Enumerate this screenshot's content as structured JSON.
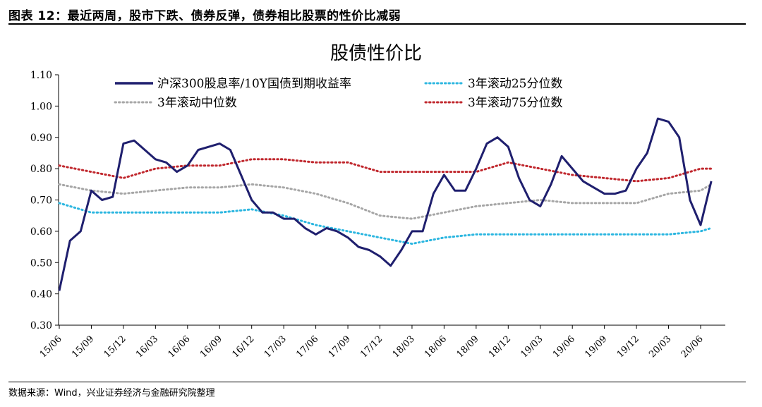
{
  "figure": {
    "title": "图表 12：最近两周，股市下跌、债券反弹，债券相比股票的性价比减弱",
    "source": "数据来源：Wind，兴业证券经济与金融研究院整理"
  },
  "chart_data": {
    "type": "line",
    "title": "股债性价比",
    "xlabel": "",
    "ylabel": "",
    "ylim": [
      0.3,
      1.1
    ],
    "yticks": [
      "0.30",
      "0.40",
      "0.50",
      "0.60",
      "0.70",
      "0.80",
      "0.90",
      "1.00",
      "1.10"
    ],
    "xticks": [
      "15/06",
      "15/09",
      "15/12",
      "16/03",
      "16/06",
      "16/09",
      "16/12",
      "17/03",
      "17/06",
      "17/09",
      "17/12",
      "18/03",
      "18/06",
      "18/09",
      "18/12",
      "19/03",
      "19/06",
      "19/09",
      "19/12",
      "20/03",
      "20/06"
    ],
    "legend_position": "top",
    "grid": false,
    "series": [
      {
        "name": "沪深300股息率/10Y国债到期收益率",
        "style": "solid",
        "color": "#1f1f6e",
        "points": [
          [
            "15/06",
            0.41
          ],
          [
            "15/07",
            0.57
          ],
          [
            "15/08",
            0.6
          ],
          [
            "15/09",
            0.73
          ],
          [
            "15/10",
            0.7
          ],
          [
            "15/11",
            0.71
          ],
          [
            "15/12",
            0.88
          ],
          [
            "16/01",
            0.89
          ],
          [
            "16/02",
            0.86
          ],
          [
            "16/03",
            0.83
          ],
          [
            "16/04",
            0.82
          ],
          [
            "16/05",
            0.79
          ],
          [
            "16/06",
            0.81
          ],
          [
            "16/07",
            0.86
          ],
          [
            "16/08",
            0.87
          ],
          [
            "16/09",
            0.88
          ],
          [
            "16/10",
            0.86
          ],
          [
            "16/11",
            0.78
          ],
          [
            "16/12",
            0.7
          ],
          [
            "17/01",
            0.66
          ],
          [
            "17/02",
            0.66
          ],
          [
            "17/03",
            0.64
          ],
          [
            "17/04",
            0.64
          ],
          [
            "17/05",
            0.61
          ],
          [
            "17/06",
            0.59
          ],
          [
            "17/07",
            0.61
          ],
          [
            "17/08",
            0.6
          ],
          [
            "17/09",
            0.58
          ],
          [
            "17/10",
            0.55
          ],
          [
            "17/11",
            0.54
          ],
          [
            "17/12",
            0.52
          ],
          [
            "18/01",
            0.49
          ],
          [
            "18/02",
            0.54
          ],
          [
            "18/03",
            0.6
          ],
          [
            "18/04",
            0.6
          ],
          [
            "18/05",
            0.72
          ],
          [
            "18/06",
            0.78
          ],
          [
            "18/07",
            0.73
          ],
          [
            "18/08",
            0.73
          ],
          [
            "18/09",
            0.8
          ],
          [
            "18/10",
            0.88
          ],
          [
            "18/11",
            0.9
          ],
          [
            "18/12",
            0.87
          ],
          [
            "19/01",
            0.77
          ],
          [
            "19/02",
            0.7
          ],
          [
            "19/03",
            0.68
          ],
          [
            "19/04",
            0.75
          ],
          [
            "19/05",
            0.84
          ],
          [
            "19/06",
            0.8
          ],
          [
            "19/07",
            0.76
          ],
          [
            "19/08",
            0.74
          ],
          [
            "19/09",
            0.72
          ],
          [
            "19/10",
            0.72
          ],
          [
            "19/11",
            0.73
          ],
          [
            "19/12",
            0.8
          ],
          [
            "20/01",
            0.85
          ],
          [
            "20/02",
            0.96
          ],
          [
            "20/03",
            0.95
          ],
          [
            "20/04",
            0.9
          ],
          [
            "20/05",
            0.7
          ],
          [
            "20/06",
            0.62
          ],
          [
            "20/07",
            0.76
          ]
        ]
      },
      {
        "name": "3年滚动25分位数",
        "style": "dotted",
        "color": "#2bb6e0",
        "points": [
          [
            "15/06",
            0.69
          ],
          [
            "15/09",
            0.66
          ],
          [
            "15/12",
            0.66
          ],
          [
            "16/03",
            0.66
          ],
          [
            "16/06",
            0.66
          ],
          [
            "16/09",
            0.66
          ],
          [
            "16/12",
            0.67
          ],
          [
            "17/03",
            0.65
          ],
          [
            "17/06",
            0.62
          ],
          [
            "17/09",
            0.6
          ],
          [
            "17/12",
            0.58
          ],
          [
            "18/03",
            0.56
          ],
          [
            "18/06",
            0.58
          ],
          [
            "18/09",
            0.59
          ],
          [
            "18/12",
            0.59
          ],
          [
            "19/03",
            0.59
          ],
          [
            "19/06",
            0.59
          ],
          [
            "19/09",
            0.59
          ],
          [
            "19/12",
            0.59
          ],
          [
            "20/03",
            0.59
          ],
          [
            "20/06",
            0.6
          ],
          [
            "20/07",
            0.61
          ]
        ]
      },
      {
        "name": "3年滚动中位数",
        "style": "dotted",
        "color": "#a6a6a6",
        "points": [
          [
            "15/06",
            0.75
          ],
          [
            "15/09",
            0.73
          ],
          [
            "15/12",
            0.72
          ],
          [
            "16/03",
            0.73
          ],
          [
            "16/06",
            0.74
          ],
          [
            "16/09",
            0.74
          ],
          [
            "16/12",
            0.75
          ],
          [
            "17/03",
            0.74
          ],
          [
            "17/06",
            0.72
          ],
          [
            "17/09",
            0.69
          ],
          [
            "17/12",
            0.65
          ],
          [
            "18/03",
            0.64
          ],
          [
            "18/06",
            0.66
          ],
          [
            "18/09",
            0.68
          ],
          [
            "18/12",
            0.69
          ],
          [
            "19/03",
            0.7
          ],
          [
            "19/06",
            0.69
          ],
          [
            "19/09",
            0.69
          ],
          [
            "19/12",
            0.69
          ],
          [
            "20/03",
            0.72
          ],
          [
            "20/06",
            0.73
          ],
          [
            "20/07",
            0.75
          ]
        ]
      },
      {
        "name": "3年滚动75分位数",
        "style": "dotted",
        "color": "#c0272d",
        "points": [
          [
            "15/06",
            0.81
          ],
          [
            "15/09",
            0.79
          ],
          [
            "15/12",
            0.77
          ],
          [
            "16/03",
            0.8
          ],
          [
            "16/06",
            0.81
          ],
          [
            "16/09",
            0.81
          ],
          [
            "16/12",
            0.83
          ],
          [
            "17/03",
            0.83
          ],
          [
            "17/06",
            0.82
          ],
          [
            "17/09",
            0.82
          ],
          [
            "17/12",
            0.79
          ],
          [
            "18/03",
            0.79
          ],
          [
            "18/06",
            0.79
          ],
          [
            "18/09",
            0.79
          ],
          [
            "18/12",
            0.82
          ],
          [
            "19/03",
            0.8
          ],
          [
            "19/06",
            0.78
          ],
          [
            "19/09",
            0.77
          ],
          [
            "19/12",
            0.76
          ],
          [
            "20/03",
            0.77
          ],
          [
            "20/06",
            0.8
          ],
          [
            "20/07",
            0.8
          ]
        ]
      }
    ]
  }
}
